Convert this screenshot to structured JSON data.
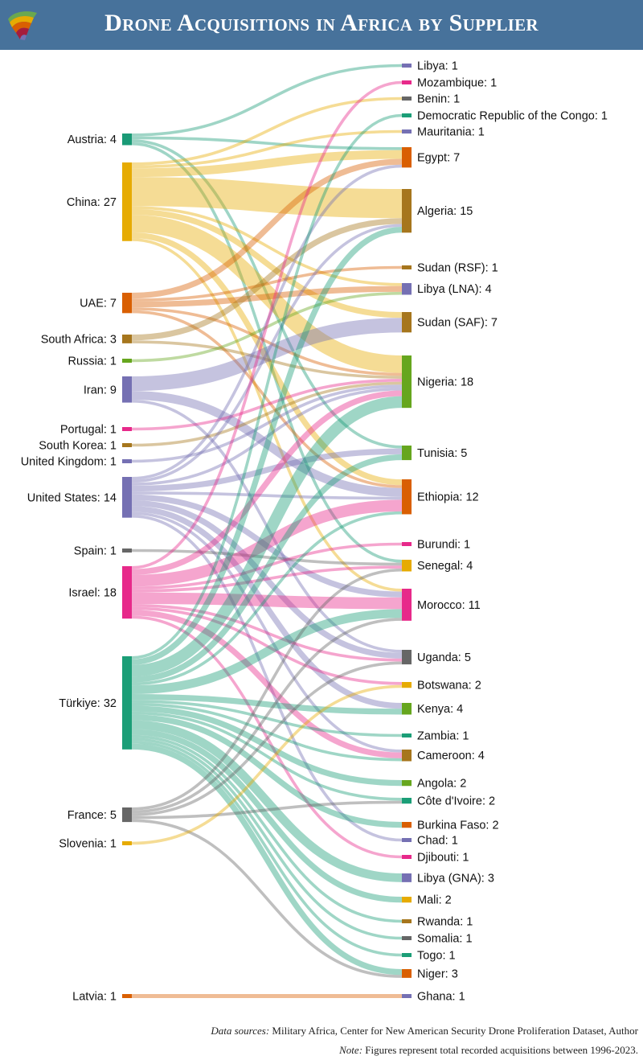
{
  "title": "Drone Acquisitions in Africa by Supplier",
  "footer": {
    "sources_label": "Data sources:",
    "sources_text": "Military Africa, Center for New American Security Drone Proliferation Dataset, Author",
    "note_label": "Note:",
    "note_text": "Figures represent total recorded acquisitions between 1996-2023."
  },
  "chart_data": {
    "type": "sankey",
    "title": "Drone Acquisitions in Africa by Supplier",
    "sources": [
      {
        "name": "Austria",
        "value": 4,
        "color": "#1a9a76"
      },
      {
        "name": "China",
        "value": 27,
        "color": "#e6ab02"
      },
      {
        "name": "UAE",
        "value": 7,
        "color": "#d95f02"
      },
      {
        "name": "South Africa",
        "value": 3,
        "color": "#a6761d"
      },
      {
        "name": "Russia",
        "value": 1,
        "color": "#66a61e"
      },
      {
        "name": "Iran",
        "value": 9,
        "color": "#7570b3"
      },
      {
        "name": "Portugal",
        "value": 1,
        "color": "#e7298a"
      },
      {
        "name": "South Korea",
        "value": 1,
        "color": "#a6761d"
      },
      {
        "name": "United Kingdom",
        "value": 1,
        "color": "#7570b3"
      },
      {
        "name": "United States",
        "value": 14,
        "color": "#7570b3"
      },
      {
        "name": "Spain",
        "value": 1,
        "color": "#666666"
      },
      {
        "name": "Israel",
        "value": 18,
        "color": "#e7298a"
      },
      {
        "name": "Türkiye",
        "value": 32,
        "color": "#1b9e77"
      },
      {
        "name": "France",
        "value": 5,
        "color": "#666666"
      },
      {
        "name": "Slovenia",
        "value": 1,
        "color": "#e6ab02"
      },
      {
        "name": "Latvia",
        "value": 1,
        "color": "#d95f02"
      }
    ],
    "targets": [
      {
        "name": "Libya",
        "value": 1,
        "color": "#7570b3"
      },
      {
        "name": "Mozambique",
        "value": 1,
        "color": "#e7298a"
      },
      {
        "name": "Benin",
        "value": 1,
        "color": "#666666"
      },
      {
        "name": "Democratic Republic of the Congo",
        "value": 1,
        "color": "#1b9e77"
      },
      {
        "name": "Mauritania",
        "value": 1,
        "color": "#7570b3"
      },
      {
        "name": "Egypt",
        "value": 7,
        "color": "#d95f02"
      },
      {
        "name": "Algeria",
        "value": 15,
        "color": "#a6761d"
      },
      {
        "name": "Sudan (RSF)",
        "value": 1,
        "color": "#a6761d"
      },
      {
        "name": "Libya (LNA)",
        "value": 4,
        "color": "#7570b3"
      },
      {
        "name": "Sudan (SAF)",
        "value": 7,
        "color": "#a6761d"
      },
      {
        "name": "Nigeria",
        "value": 18,
        "color": "#66a61e"
      },
      {
        "name": "Tunisia",
        "value": 5,
        "color": "#66a61e"
      },
      {
        "name": "Ethiopia",
        "value": 12,
        "color": "#d95f02"
      },
      {
        "name": "Burundi",
        "value": 1,
        "color": "#e7298a"
      },
      {
        "name": "Senegal",
        "value": 4,
        "color": "#e6ab02"
      },
      {
        "name": "Morocco",
        "value": 11,
        "color": "#e7298a"
      },
      {
        "name": "Uganda",
        "value": 5,
        "color": "#666666"
      },
      {
        "name": "Botswana",
        "value": 2,
        "color": "#e6ab02"
      },
      {
        "name": "Kenya",
        "value": 4,
        "color": "#66a61e"
      },
      {
        "name": "Zambia",
        "value": 1,
        "color": "#1b9e77"
      },
      {
        "name": "Cameroon",
        "value": 4,
        "color": "#a6761d"
      },
      {
        "name": "Angola",
        "value": 2,
        "color": "#66a61e"
      },
      {
        "name": "Côte d'Ivoire",
        "value": 2,
        "color": "#1b9e77"
      },
      {
        "name": "Burkina Faso",
        "value": 2,
        "color": "#d95f02"
      },
      {
        "name": "Chad",
        "value": 1,
        "color": "#7570b3"
      },
      {
        "name": "Djibouti",
        "value": 1,
        "color": "#e7298a"
      },
      {
        "name": "Libya (GNA)",
        "value": 3,
        "color": "#7570b3"
      },
      {
        "name": "Mali",
        "value": 2,
        "color": "#e6ab02"
      },
      {
        "name": "Rwanda",
        "value": 1,
        "color": "#a6761d"
      },
      {
        "name": "Somalia",
        "value": 1,
        "color": "#666666"
      },
      {
        "name": "Togo",
        "value": 1,
        "color": "#1b9e77"
      },
      {
        "name": "Niger",
        "value": 3,
        "color": "#d95f02"
      },
      {
        "name": "Ghana",
        "value": 1,
        "color": "#7570b3"
      }
    ],
    "flows": [
      {
        "source": "Austria",
        "target": "Libya",
        "value": 1
      },
      {
        "source": "Austria",
        "target": "Egypt",
        "value": 1
      },
      {
        "source": "Austria",
        "target": "Tunisia",
        "value": 1
      },
      {
        "source": "Austria",
        "target": "Senegal",
        "value": 1
      },
      {
        "source": "China",
        "target": "Benin",
        "value": 1
      },
      {
        "source": "China",
        "target": "Mauritania",
        "value": 1
      },
      {
        "source": "China",
        "target": "Egypt",
        "value": 3
      },
      {
        "source": "China",
        "target": "Algeria",
        "value": 10
      },
      {
        "source": "China",
        "target": "Libya (LNA)",
        "value": 1
      },
      {
        "source": "China",
        "target": "Sudan (SAF)",
        "value": 2
      },
      {
        "source": "China",
        "target": "Nigeria",
        "value": 6
      },
      {
        "source": "China",
        "target": "Ethiopia",
        "value": 2
      },
      {
        "source": "China",
        "target": "Morocco",
        "value": 1
      },
      {
        "source": "UAE",
        "target": "Egypt",
        "value": 2
      },
      {
        "source": "UAE",
        "target": "Sudan (RSF)",
        "value": 1
      },
      {
        "source": "UAE",
        "target": "Libya (LNA)",
        "value": 2
      },
      {
        "source": "UAE",
        "target": "Nigeria",
        "value": 1
      },
      {
        "source": "UAE",
        "target": "Ethiopia",
        "value": 1
      },
      {
        "source": "South Africa",
        "target": "Algeria",
        "value": 2
      },
      {
        "source": "South Africa",
        "target": "Nigeria",
        "value": 1
      },
      {
        "source": "Russia",
        "target": "Libya (LNA)",
        "value": 1
      },
      {
        "source": "Iran",
        "target": "Sudan (SAF)",
        "value": 5
      },
      {
        "source": "Iran",
        "target": "Ethiopia",
        "value": 3
      },
      {
        "source": "Iran",
        "target": "Uganda",
        "value": 1
      },
      {
        "source": "Portugal",
        "target": "Nigeria",
        "value": 1
      },
      {
        "source": "South Korea",
        "target": "Nigeria",
        "value": 1
      },
      {
        "source": "United Kingdom",
        "target": "Nigeria",
        "value": 1
      },
      {
        "source": "United States",
        "target": "Egypt",
        "value": 1
      },
      {
        "source": "United States",
        "target": "Algeria",
        "value": 1
      },
      {
        "source": "United States",
        "target": "Tunisia",
        "value": 2
      },
      {
        "source": "United States",
        "target": "Nigeria",
        "value": 1
      },
      {
        "source": "United States",
        "target": "Ethiopia",
        "value": 1
      },
      {
        "source": "United States",
        "target": "Morocco",
        "value": 2
      },
      {
        "source": "United States",
        "target": "Uganda",
        "value": 2
      },
      {
        "source": "United States",
        "target": "Kenya",
        "value": 2
      },
      {
        "source": "United States",
        "target": "Cameroon",
        "value": 1
      },
      {
        "source": "United States",
        "target": "Chad",
        "value": 1
      },
      {
        "source": "Spain",
        "target": "Senegal",
        "value": 1
      },
      {
        "source": "Israel",
        "target": "Mozambique",
        "value": 1
      },
      {
        "source": "Israel",
        "target": "Nigeria",
        "value": 2
      },
      {
        "source": "Israel",
        "target": "Ethiopia",
        "value": 4
      },
      {
        "source": "Israel",
        "target": "Burundi",
        "value": 1
      },
      {
        "source": "Israel",
        "target": "Senegal",
        "value": 1
      },
      {
        "source": "Israel",
        "target": "Morocco",
        "value": 4
      },
      {
        "source": "Israel",
        "target": "Uganda",
        "value": 1
      },
      {
        "source": "Israel",
        "target": "Botswana",
        "value": 1
      },
      {
        "source": "Israel",
        "target": "Cameroon",
        "value": 2
      },
      {
        "source": "Israel",
        "target": "Djibouti",
        "value": 1
      },
      {
        "source": "Türkiye",
        "target": "Democratic Republic of the Congo",
        "value": 1
      },
      {
        "source": "Türkiye",
        "target": "Algeria",
        "value": 2
      },
      {
        "source": "Türkiye",
        "target": "Nigeria",
        "value": 4
      },
      {
        "source": "Türkiye",
        "target": "Tunisia",
        "value": 2
      },
      {
        "source": "Türkiye",
        "target": "Ethiopia",
        "value": 1
      },
      {
        "source": "Türkiye",
        "target": "Morocco",
        "value": 3
      },
      {
        "source": "Türkiye",
        "target": "Kenya",
        "value": 2
      },
      {
        "source": "Türkiye",
        "target": "Zambia",
        "value": 1
      },
      {
        "source": "Türkiye",
        "target": "Angola",
        "value": 2
      },
      {
        "source": "Türkiye",
        "target": "Côte d'Ivoire",
        "value": 1
      },
      {
        "source": "Türkiye",
        "target": "Burkina Faso",
        "value": 2
      },
      {
        "source": "Türkiye",
        "target": "Libya (GNA)",
        "value": 3
      },
      {
        "source": "Türkiye",
        "target": "Mali",
        "value": 2
      },
      {
        "source": "Türkiye",
        "target": "Rwanda",
        "value": 1
      },
      {
        "source": "Türkiye",
        "target": "Somalia",
        "value": 1
      },
      {
        "source": "Türkiye",
        "target": "Togo",
        "value": 1
      },
      {
        "source": "Türkiye",
        "target": "Niger",
        "value": 2
      },
      {
        "source": "Türkiye",
        "target": "Nigeria",
        "value": 0
      },
      {
        "source": "France",
        "target": "Morocco",
        "value": 1
      },
      {
        "source": "France",
        "target": "Senegal",
        "value": 1
      },
      {
        "source": "France",
        "target": "Uganda",
        "value": 1
      },
      {
        "source": "France",
        "target": "Côte d'Ivoire",
        "value": 1
      },
      {
        "source": "France",
        "target": "Niger",
        "value": 1
      },
      {
        "source": "Slovenia",
        "target": "Botswana",
        "value": 1
      },
      {
        "source": "Latvia",
        "target": "Ghana",
        "value": 1
      },
      {
        "source": "Austria",
        "target": "Ethiopia",
        "value": 0
      },
      {
        "source": "Türkiye",
        "target": "Cameroon",
        "value": 1
      }
    ]
  }
}
